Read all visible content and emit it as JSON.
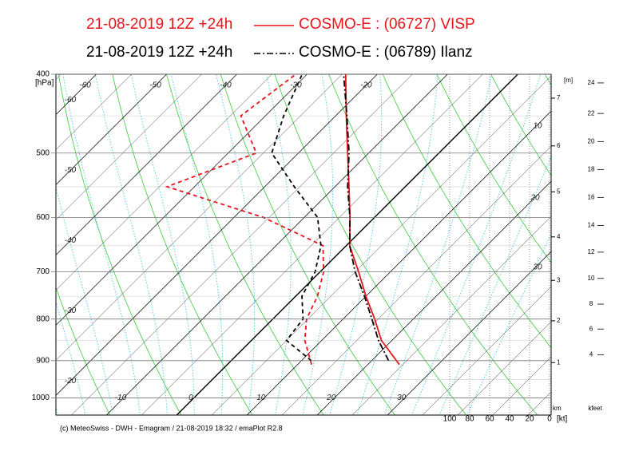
{
  "chart_data": {
    "type": "emagram",
    "ylabel": "[hPa]",
    "ylim": [
      1050,
      400
    ],
    "yticks": [
      400,
      500,
      600,
      700,
      800,
      900,
      1000
    ],
    "log_y": true,
    "xlim": [
      -17.2,
      53.3
    ],
    "skew": 45,
    "xticks": [
      -60,
      -50,
      -40,
      -30,
      -20,
      -10,
      0,
      10,
      20,
      30
    ],
    "series": [
      {
        "run": "21-08-2019  12Z +24h",
        "name": "COSMO-E : (06727)  VISP",
        "color": "#e8141c",
        "line_style": "solid",
        "pressure": [
          910,
          850,
          800,
          750,
          700,
          650,
          600,
          550,
          500,
          450,
          400
        ],
        "temperature": [
          24.5,
          18.5,
          14.5,
          10,
          5.5,
          0.5,
          -3.5,
          -8,
          -13,
          -18.5,
          -24.5
        ],
        "dewpoint": [
          12,
          7.6,
          4.8,
          3.1,
          0.5,
          -3.3,
          -15.8,
          -33.9,
          -26,
          -33.5,
          -31.6
        ]
      },
      {
        "run": "21-08-2019  12Z +24h",
        "name": "COSMO-E : (06789)  Ilanz",
        "color": "#000000",
        "line_style": "dashdot",
        "pressure": [
          900,
          850,
          800,
          750,
          700,
          650,
          600,
          550,
          500,
          450,
          400
        ],
        "temperature": [
          22.4,
          18.1,
          14.1,
          9.8,
          5,
          0.5,
          -3.5,
          -8.2,
          -12.8,
          -18.4,
          -24.8
        ],
        "dewpoint": [
          11.4,
          5,
          4.3,
          0.9,
          -0.7,
          -3.6,
          -8.1,
          -15.8,
          -23.8,
          -27.4,
          -30.7
        ]
      }
    ],
    "height_axis": {
      "unit_top": "[m]",
      "unit_bottom": "km",
      "ticks": [
        1,
        2,
        3,
        4,
        5,
        6,
        7
      ],
      "tick_pressure": [
        905,
        804,
        717,
        634,
        558,
        490,
        428
      ]
    },
    "kfeet_axis": {
      "unit": "kfeet",
      "ticks": [
        4,
        6,
        8,
        10,
        12,
        14,
        16,
        18,
        20,
        22,
        24
      ],
      "tick_pressure": [
        885,
        823,
        767,
        713,
        662,
        614,
        567,
        524,
        484,
        447,
        410
      ]
    },
    "wind_axis": {
      "unit": "[kt]",
      "xlim": [
        100,
        0
      ],
      "ticks": [
        100,
        80,
        60,
        40,
        20,
        0
      ]
    },
    "annotation_values": [
      10,
      20,
      30
    ],
    "credit": "(c) MeteoSwiss - DWH - Emagram / 21-08-2019  18:32 / emaPlot R2.8"
  }
}
